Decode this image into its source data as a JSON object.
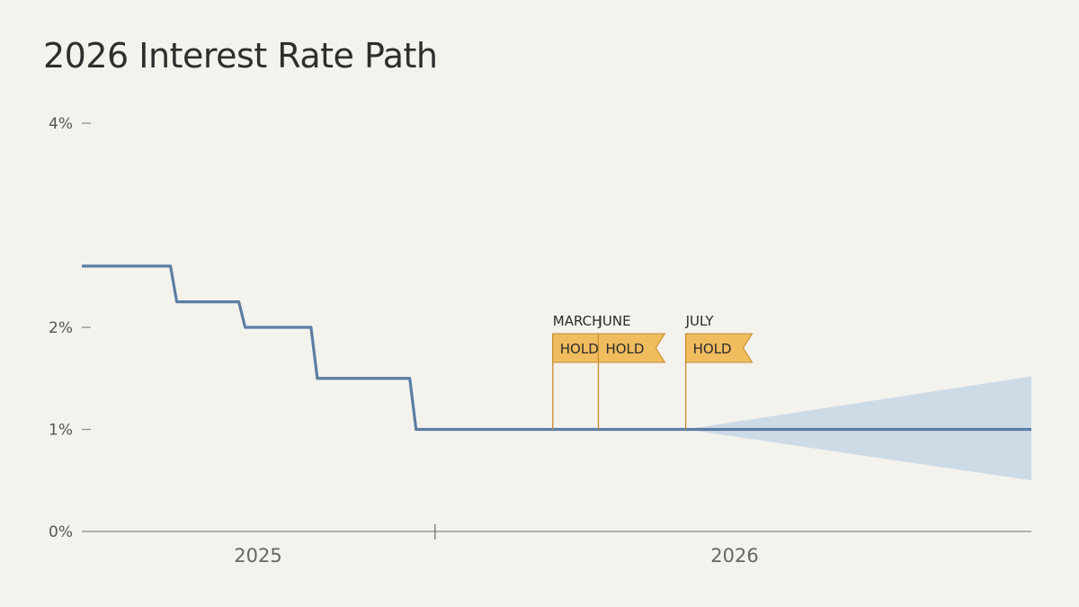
{
  "chart_data": {
    "type": "line",
    "title": "2026 Interest Rate Path",
    "xlabel": "",
    "ylabel": "",
    "ylim": [
      0,
      4
    ],
    "y_ticks": [
      "0%",
      "1%",
      "2%",
      "4%"
    ],
    "y_tick_values": [
      0,
      1,
      2,
      4
    ],
    "x_ticks": [
      "2025",
      "2026"
    ],
    "x_range_years": [
      2024.5,
      2027.0
    ],
    "x_divider_year": 2025.43,
    "grid": false,
    "series": [
      {
        "step": "post",
        "x": [
          2024.5,
          2024.75,
          2024.93,
          2025.12,
          2025.38,
          2027.0
        ],
        "y": [
          2.6,
          2.25,
          2.0,
          1.5,
          1.0,
          1.0
        ]
      }
    ],
    "projection_band": {
      "x": [
        2026.09,
        2027.0
      ],
      "upper": [
        1.0,
        1.52
      ],
      "lower": [
        1.0,
        0.5
      ]
    },
    "annotations": [
      {
        "month": "MARCH",
        "label": "HOLD",
        "x": 2025.74,
        "y": 1.0
      },
      {
        "month": "JUNE",
        "label": "HOLD",
        "x": 2025.86,
        "y": 1.0
      },
      {
        "month": "JULY",
        "label": "HOLD",
        "x": 2026.09,
        "y": 1.0
      }
    ],
    "colors": {
      "line": "#5b7ea4",
      "band": "#c9d8e6",
      "flag_fill": "#f0bc5e",
      "flag_edge": "#c98a2c",
      "axis": "#888888",
      "background": "#f4f2ed"
    }
  }
}
